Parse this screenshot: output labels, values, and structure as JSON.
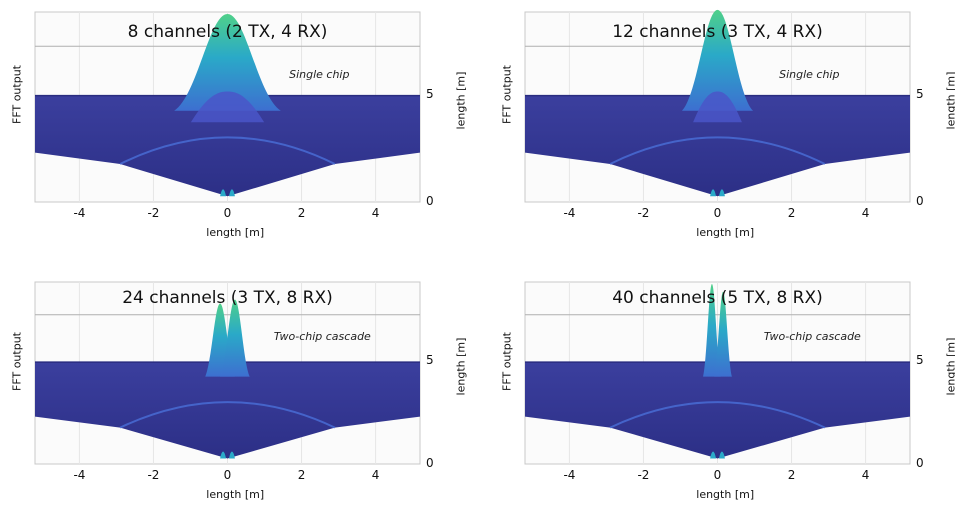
{
  "chart_data": [
    {
      "type": "surface",
      "title": "8 channels (2 TX, 4 RX)",
      "annotation": "Single chip",
      "zlabel": "FFT output",
      "xlabel": "length [m]",
      "ylabel_right": "length [m]",
      "x_ticks": [
        "-4",
        "-2",
        "0",
        "2",
        "4"
      ],
      "y_ticks": [
        "0",
        "5"
      ],
      "xlim": [
        -5.2,
        5.2
      ],
      "peaks": [
        {
          "x": 0.0,
          "height": 1.0,
          "width_m": 0.9
        }
      ]
    },
    {
      "type": "surface",
      "title": "12 channels (3 TX, 4 RX)",
      "annotation": "Single chip",
      "zlabel": "FFT output",
      "xlabel": "length [m]",
      "ylabel_right": "length [m]",
      "x_ticks": [
        "-4",
        "-2",
        "0",
        "2",
        "4"
      ],
      "y_ticks": [
        "0",
        "5"
      ],
      "xlim": [
        -5.2,
        5.2
      ],
      "peaks": [
        {
          "x": 0.0,
          "height": 1.05,
          "width_m": 0.6
        }
      ]
    },
    {
      "type": "surface",
      "title": "24 channels (3 TX, 8 RX)",
      "annotation": "Two-chip cascade",
      "zlabel": "FFT output",
      "xlabel": "length [m]",
      "ylabel_right": "length [m]",
      "x_ticks": [
        "-4",
        "-2",
        "0",
        "2",
        "4"
      ],
      "y_ticks": [
        "0",
        "5"
      ],
      "xlim": [
        -5.2,
        5.2
      ],
      "peaks": [
        {
          "x": -0.2,
          "height": 0.75,
          "width_m": 0.25
        },
        {
          "x": 0.2,
          "height": 0.8,
          "width_m": 0.25
        }
      ]
    },
    {
      "type": "surface",
      "title": "40 channels (5 TX, 8 RX)",
      "annotation": "Two-chip cascade",
      "zlabel": "FFT output",
      "xlabel": "length [m]",
      "ylabel_right": "length [m]",
      "x_ticks": [
        "-4",
        "-2",
        "0",
        "2",
        "4"
      ],
      "y_ticks": [
        "0",
        "5"
      ],
      "xlim": [
        -5.2,
        5.2
      ],
      "peaks": [
        {
          "x": -0.15,
          "height": 1.0,
          "width_m": 0.15
        },
        {
          "x": 0.15,
          "height": 0.9,
          "width_m": 0.15
        }
      ]
    }
  ],
  "colors": {
    "surface": "#3b3f9e",
    "surface_dark": "#2c2f86",
    "peak_top": "#4fd08a",
    "peak_mid": "#2aa9c8",
    "peak_base": "#3d6fd0"
  }
}
